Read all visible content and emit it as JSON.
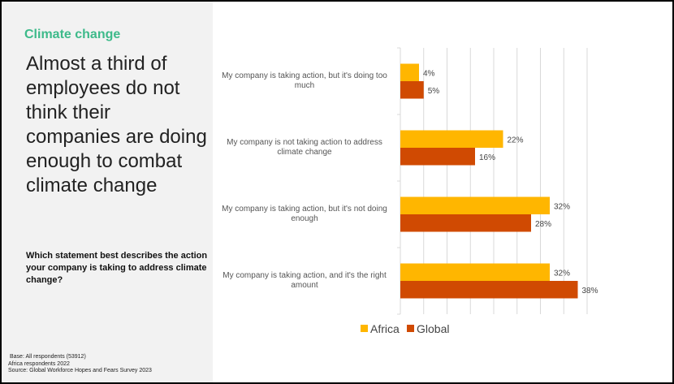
{
  "left_panel": {
    "kicker": "Climate change",
    "headline": "Almost a third of employees do not think their companies are doing enough to combat climate change",
    "question": "Which statement best describes the action your company is taking to address climate change?",
    "notes": [
      "Base: All respondents (53912)",
      "Africa respondents 2022",
      "Source: Global Workforce Hopes and Fears Survey 2023"
    ]
  },
  "colors": {
    "africa": "#ffb600",
    "global": "#d04a02",
    "accent": "#3dba8a"
  },
  "chart_data": {
    "type": "bar",
    "orientation": "horizontal",
    "categories": [
      [
        "My company is taking action, but it's doing too",
        "much"
      ],
      [
        "My company is not taking action to address",
        "climate change"
      ],
      [
        "My company is taking action, but it's not doing",
        "enough"
      ],
      [
        "My company is taking action, and it's the right",
        "amount"
      ]
    ],
    "series": [
      {
        "name": "Africa",
        "values": [
          4,
          22,
          32,
          32
        ],
        "labels": [
          "4%",
          "22%",
          "32%",
          "32%"
        ]
      },
      {
        "name": "Global",
        "values": [
          5,
          16,
          28,
          38
        ],
        "labels": [
          "5%",
          "16%",
          "28%",
          "38%"
        ]
      }
    ],
    "xlim": [
      0,
      40
    ],
    "grid": true,
    "legend": "bottom"
  }
}
